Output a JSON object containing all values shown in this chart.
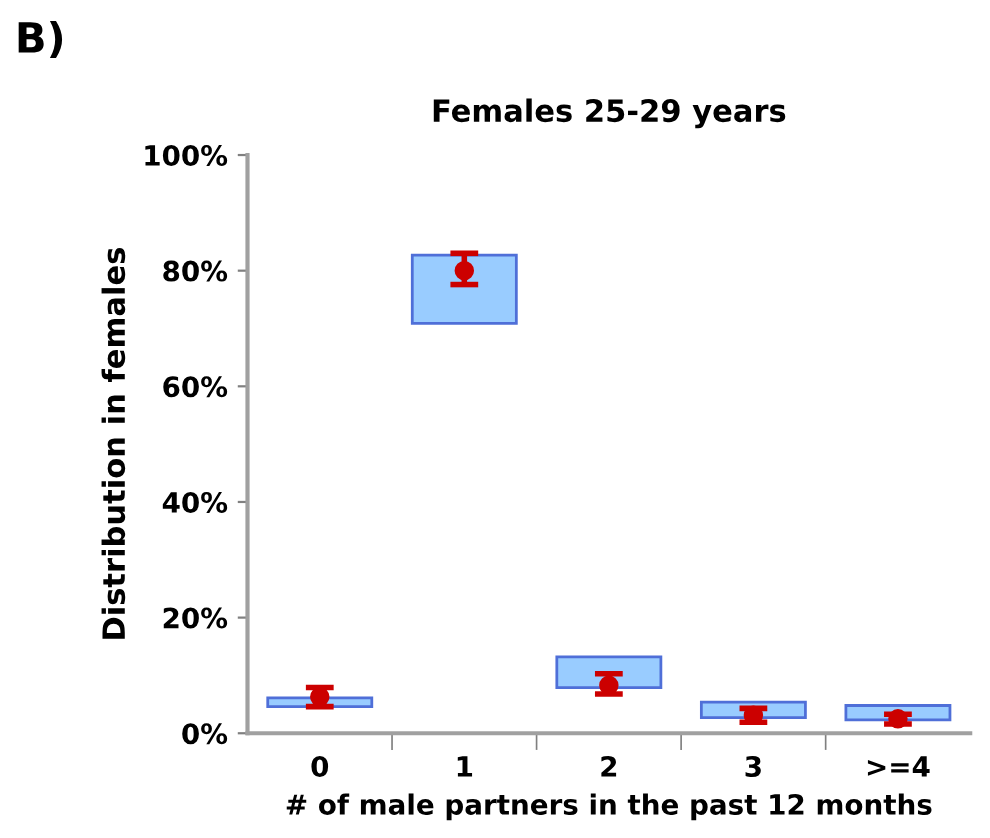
{
  "chart_data": {
    "type": "bar",
    "title": "Females 25-29 years",
    "xlabel": "# of male partners in the past 12 months",
    "ylabel": "Distribution in females",
    "annotations": [
      "B)"
    ],
    "categories": [
      "0",
      "1",
      "2",
      "3",
      ">=4"
    ],
    "series": [
      {
        "color": "#99ccff",
        "base": [
          4.6,
          70.9,
          7.9,
          2.7,
          2.3
        ],
        "values": [
          1.5,
          11.8,
          5.3,
          2.7,
          2.5
        ]
      },
      {
        "type": "scatter",
        "color": "#cc0000",
        "x": [
          "0",
          "1",
          "2",
          "3",
          ">=4"
        ],
        "values": [
          6.3,
          80,
          8.3,
          3.1,
          2.5
        ],
        "errors": [
          [
            4.6,
            7.9
          ],
          [
            77.6,
            83.0
          ],
          [
            6.8,
            10.3
          ],
          [
            1.9,
            4.3
          ],
          [
            1.6,
            3.3
          ]
        ]
      }
    ],
    "ylim": [
      0,
      100
    ],
    "yticks": [
      {
        "value": 0,
        "label": "0%"
      },
      {
        "value": 20,
        "label": "20%"
      },
      {
        "value": 40,
        "label": "40%"
      },
      {
        "value": 60,
        "label": "60%"
      },
      {
        "value": 80,
        "label": "80%"
      },
      {
        "value": 100,
        "label": "100%"
      }
    ],
    "grid": false,
    "marker": "circle"
  }
}
